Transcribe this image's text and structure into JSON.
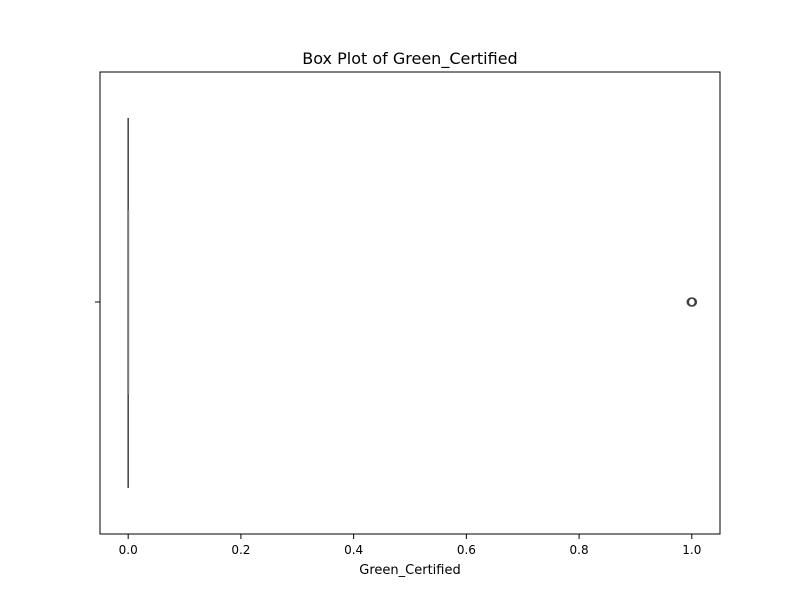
{
  "chart_data": {
    "type": "box",
    "title": "Box Plot of Green_Certified",
    "xlabel": "Green_Certified",
    "ylabel": "",
    "xlim": [
      -0.05,
      1.05
    ],
    "x_ticks": [
      0.0,
      0.2,
      0.4,
      0.6,
      0.8,
      1.0
    ],
    "x_tick_labels": [
      "0.0",
      "0.2",
      "0.4",
      "0.6",
      "0.8",
      "1.0"
    ],
    "grid": false,
    "orientation": "horizontal",
    "box": {
      "min": 0.0,
      "q1": 0.0,
      "median": 0.0,
      "q3": 0.0,
      "max": 0.0,
      "outliers": [
        1.0,
        1.0,
        1.0
      ]
    },
    "colors": {
      "box_line": "#3f3f3f",
      "outlier": "#3f3f3f",
      "frame": "#000000"
    }
  }
}
